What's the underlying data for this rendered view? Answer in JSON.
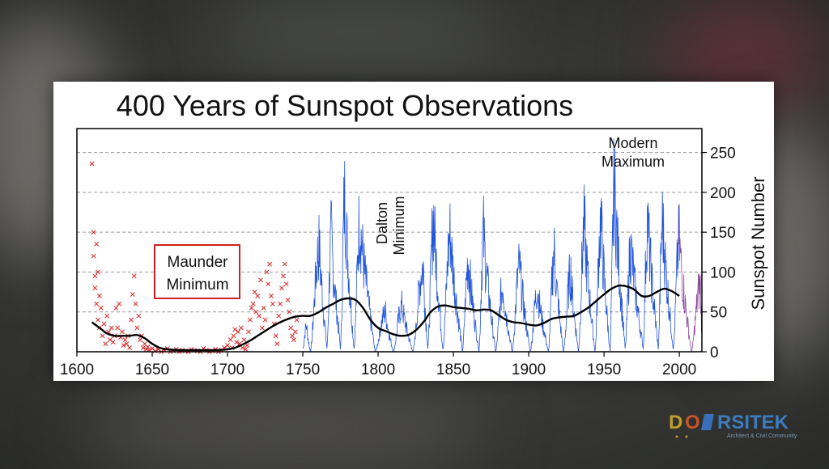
{
  "chart_data": {
    "type": "line",
    "title": "400 Years of Sunspot Observations",
    "ylabel": "Sunspot Number",
    "xlim": [
      1600,
      2015
    ],
    "ylim": [
      0,
      280
    ],
    "x_ticks": [
      "1600",
      "1650",
      "1700",
      "1750",
      "1800",
      "1850",
      "1900",
      "1950",
      "2000"
    ],
    "y_ticks": [
      "0",
      "50",
      "100",
      "150",
      "200",
      "250"
    ],
    "grid": "horizontal dashed",
    "annotations": {
      "maunder_line1": "Maunder",
      "maunder_line2": "Minimum",
      "dalton_line1": "Dalton",
      "dalton_line2": "Minimum",
      "modern_line1": "Modern",
      "modern_line2": "Maximum"
    },
    "colors": {
      "early_observations": "#dd2222",
      "monthly_series": "#2255dd",
      "recent_series": "#8a4a9a",
      "smoothed_average": "#000000",
      "annotation_box": "#cc2222"
    },
    "early_observations": {
      "marker": "x",
      "points": [
        [
          1610,
          236
        ],
        [
          1611,
          150
        ],
        [
          1611,
          120
        ],
        [
          1612,
          95
        ],
        [
          1612,
          80
        ],
        [
          1613,
          60
        ],
        [
          1613,
          135
        ],
        [
          1614,
          40
        ],
        [
          1614,
          100
        ],
        [
          1615,
          70
        ],
        [
          1615,
          30
        ],
        [
          1616,
          55
        ],
        [
          1617,
          20
        ],
        [
          1618,
          35
        ],
        [
          1619,
          10
        ],
        [
          1620,
          45
        ],
        [
          1621,
          25
        ],
        [
          1622,
          15
        ],
        [
          1623,
          30
        ],
        [
          1624,
          12
        ],
        [
          1625,
          20
        ],
        [
          1626,
          55
        ],
        [
          1627,
          30
        ],
        [
          1628,
          60
        ],
        [
          1629,
          18
        ],
        [
          1630,
          25
        ],
        [
          1631,
          8
        ],
        [
          1632,
          15
        ],
        [
          1633,
          10
        ],
        [
          1634,
          20
        ],
        [
          1635,
          5
        ],
        [
          1636,
          40
        ],
        [
          1637,
          72
        ],
        [
          1638,
          95
        ],
        [
          1639,
          60
        ],
        [
          1640,
          30
        ],
        [
          1641,
          45
        ],
        [
          1642,
          15
        ],
        [
          1643,
          20
        ],
        [
          1644,
          5
        ],
        [
          1645,
          10
        ],
        [
          1646,
          3
        ],
        [
          1647,
          6
        ],
        [
          1648,
          2
        ],
        [
          1650,
          4
        ],
        [
          1652,
          1
        ],
        [
          1654,
          3
        ],
        [
          1656,
          0
        ],
        [
          1658,
          2
        ],
        [
          1660,
          4
        ],
        [
          1662,
          0
        ],
        [
          1664,
          1
        ],
        [
          1666,
          3
        ],
        [
          1668,
          0
        ],
        [
          1670,
          2
        ],
        [
          1672,
          1
        ],
        [
          1674,
          0
        ],
        [
          1676,
          3
        ],
        [
          1678,
          2
        ],
        [
          1680,
          1
        ],
        [
          1682,
          0
        ],
        [
          1684,
          4
        ],
        [
          1686,
          2
        ],
        [
          1688,
          0
        ],
        [
          1690,
          1
        ],
        [
          1692,
          3
        ],
        [
          1694,
          0
        ],
        [
          1696,
          2
        ],
        [
          1698,
          5
        ],
        [
          1700,
          8
        ],
        [
          1702,
          15
        ],
        [
          1703,
          5
        ],
        [
          1704,
          20
        ],
        [
          1705,
          28
        ],
        [
          1706,
          12
        ],
        [
          1707,
          25
        ],
        [
          1708,
          10
        ],
        [
          1709,
          30
        ],
        [
          1710,
          5
        ],
        [
          1711,
          15
        ],
        [
          1712,
          3
        ],
        [
          1713,
          8
        ],
        [
          1714,
          25
        ],
        [
          1715,
          40
        ],
        [
          1716,
          55
        ],
        [
          1717,
          60
        ],
        [
          1718,
          75
        ],
        [
          1719,
          50
        ],
        [
          1720,
          70
        ],
        [
          1721,
          45
        ],
        [
          1722,
          90
        ],
        [
          1723,
          30
        ],
        [
          1724,
          55
        ],
        [
          1725,
          40
        ],
        [
          1726,
          100
        ],
        [
          1727,
          85
        ],
        [
          1728,
          110
        ],
        [
          1729,
          70
        ],
        [
          1730,
          60
        ],
        [
          1731,
          35
        ],
        [
          1732,
          20
        ],
        [
          1733,
          10
        ],
        [
          1734,
          45
        ],
        [
          1735,
          60
        ],
        [
          1736,
          80
        ],
        [
          1737,
          95
        ],
        [
          1738,
          110
        ],
        [
          1739,
          85
        ],
        [
          1740,
          65
        ],
        [
          1741,
          50
        ],
        [
          1742,
          30
        ],
        [
          1743,
          20
        ],
        [
          1744,
          15
        ],
        [
          1745,
          25
        ],
        [
          1746,
          40
        ]
      ]
    },
    "cycle_maxima": [
      [
        1761,
        160
      ],
      [
        1769,
        175
      ],
      [
        1778,
        238
      ],
      [
        1788,
        200
      ],
      [
        1805,
        60
      ],
      [
        1816,
        70
      ],
      [
        1830,
        130
      ],
      [
        1837,
        205
      ],
      [
        1848,
        180
      ],
      [
        1860,
        140
      ],
      [
        1870,
        180
      ],
      [
        1883,
        100
      ],
      [
        1894,
        130
      ],
      [
        1906,
        95
      ],
      [
        1917,
        150
      ],
      [
        1928,
        120
      ],
      [
        1937,
        190
      ],
      [
        1948,
        200
      ],
      [
        1957,
        254
      ],
      [
        1968,
        160
      ],
      [
        1979,
        200
      ],
      [
        1989,
        200
      ],
      [
        2000,
        170
      ],
      [
        2014,
        100
      ]
    ],
    "cycle_minima": [
      [
        1750,
        5
      ],
      [
        1755,
        0
      ],
      [
        1766,
        5
      ],
      [
        1775,
        5
      ],
      [
        1784,
        5
      ],
      [
        1798,
        0
      ],
      [
        1810,
        0
      ],
      [
        1823,
        0
      ],
      [
        1833,
        5
      ],
      [
        1843,
        5
      ],
      [
        1856,
        0
      ],
      [
        1867,
        0
      ],
      [
        1878,
        0
      ],
      [
        1889,
        0
      ],
      [
        1901,
        0
      ],
      [
        1913,
        0
      ],
      [
        1923,
        0
      ],
      [
        1933,
        0
      ],
      [
        1944,
        0
      ],
      [
        1954,
        0
      ],
      [
        1964,
        5
      ],
      [
        1976,
        5
      ],
      [
        1986,
        5
      ],
      [
        1996,
        5
      ],
      [
        2008,
        0
      ],
      [
        2015,
        30
      ]
    ],
    "smoothed_average": {
      "x": [
        1610,
        1615,
        1620,
        1625,
        1630,
        1635,
        1640,
        1645,
        1650,
        1655,
        1660,
        1670,
        1680,
        1690,
        1700,
        1705,
        1710,
        1715,
        1720,
        1725,
        1730,
        1735,
        1740,
        1745,
        1750,
        1755,
        1760,
        1765,
        1770,
        1775,
        1780,
        1785,
        1790,
        1795,
        1800,
        1805,
        1810,
        1815,
        1820,
        1825,
        1830,
        1835,
        1840,
        1845,
        1850,
        1855,
        1860,
        1865,
        1870,
        1875,
        1880,
        1885,
        1890,
        1895,
        1900,
        1905,
        1910,
        1915,
        1920,
        1925,
        1930,
        1935,
        1940,
        1945,
        1950,
        1955,
        1960,
        1965,
        1970,
        1975,
        1980,
        1985,
        1990,
        1995,
        2000
      ],
      "values": [
        37,
        30,
        23,
        20,
        20,
        20,
        21,
        17,
        10,
        5,
        3,
        2,
        2,
        2,
        3,
        5,
        9,
        14,
        20,
        26,
        32,
        37,
        41,
        44,
        45,
        45,
        49,
        55,
        60,
        65,
        67,
        65,
        55,
        40,
        30,
        26,
        22,
        20,
        21,
        27,
        37,
        50,
        57,
        58,
        56,
        55,
        54,
        52,
        53,
        52,
        46,
        40,
        37,
        36,
        34,
        33,
        36,
        41,
        43,
        44,
        45,
        50,
        56,
        64,
        72,
        79,
        83,
        82,
        78,
        70,
        70,
        75,
        79,
        76,
        70
      ]
    }
  }
}
